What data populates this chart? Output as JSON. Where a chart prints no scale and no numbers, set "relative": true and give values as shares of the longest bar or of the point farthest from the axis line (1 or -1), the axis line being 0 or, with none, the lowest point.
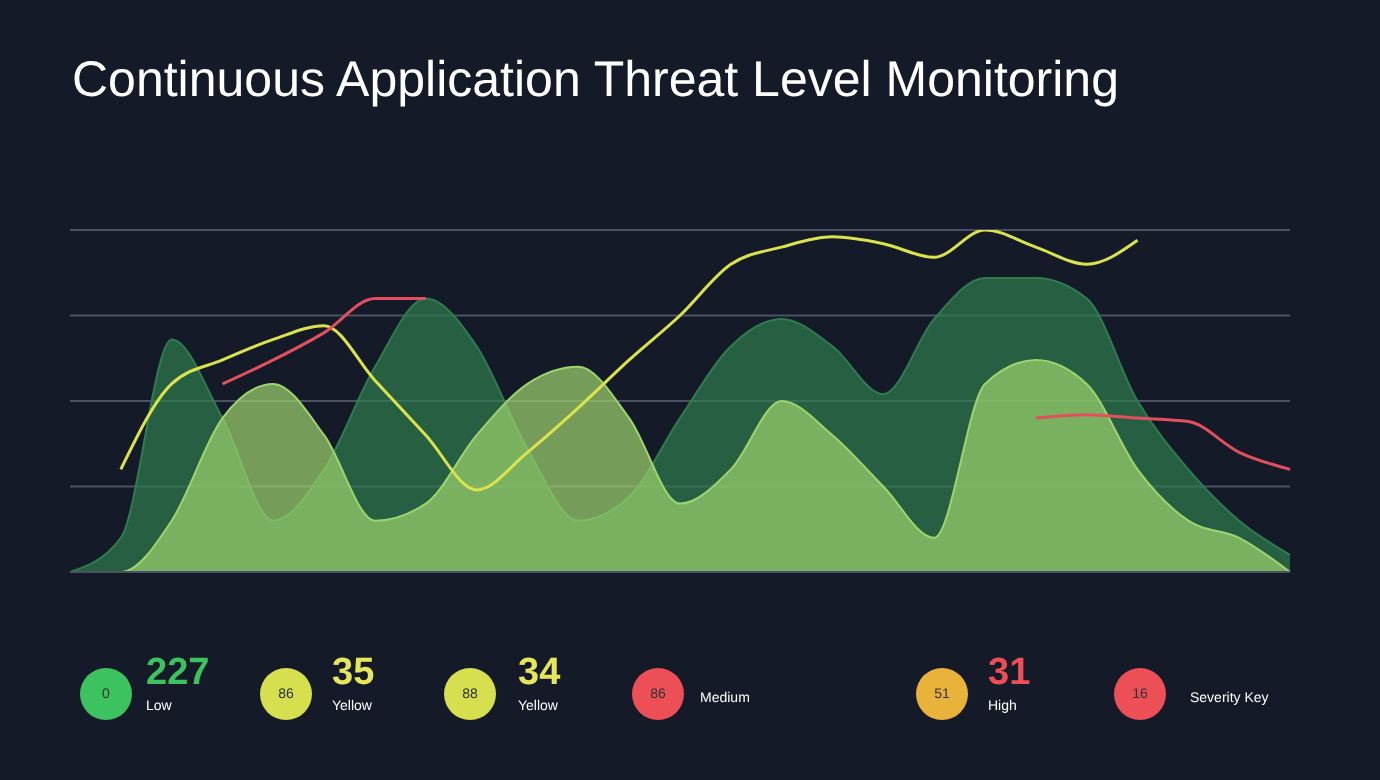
{
  "chart_data": {
    "type": "area",
    "title": "Continuous Application Threat Level Monitoring",
    "relative": true,
    "annotations": [
      "0",
      "227",
      "Low",
      "86",
      "35",
      "Yellow",
      "88",
      "34",
      "Yellow",
      "86",
      "Medium",
      "51",
      "31",
      "High",
      "16",
      "Severity Key"
    ],
    "categories": [
      null,
      null,
      null,
      null,
      null,
      null,
      null,
      null,
      null,
      null,
      null,
      null,
      null,
      null,
      null,
      null,
      null,
      null,
      null,
      null,
      null,
      null,
      null,
      null,
      null
    ],
    "series": [
      {
        "color": "#2f7d4e",
        "values": [
          0,
          0.1,
          0.68,
          0.45,
          0.15,
          0.3,
          0.6,
          0.8,
          0.66,
          0.36,
          0.15,
          0.22,
          0.45,
          0.66,
          0.74,
          0.66,
          0.52,
          0.74,
          0.86,
          0.86,
          0.8,
          0.5,
          0.3,
          0.15,
          0.05
        ]
      },
      {
        "color": "#9ed46e",
        "values": [
          0,
          0,
          0.15,
          0.45,
          0.55,
          0.4,
          0.15,
          0.2,
          0.4,
          0.55,
          0.6,
          0.45,
          0.2,
          0.3,
          0.5,
          0.4,
          0.25,
          0.1,
          0.55,
          0.62,
          0.55,
          0.3,
          0.15,
          0.1,
          0
        ]
      },
      {
        "type": "line",
        "color": "#dce24c",
        "values": [
          null,
          0.3,
          0.55,
          0.62,
          0.68,
          0.72,
          0.56,
          0.4,
          0.24,
          0.35,
          0.48,
          0.62,
          0.75,
          0.9,
          0.95,
          0.98,
          0.96,
          0.92,
          1,
          0.95,
          0.9,
          0.97,
          null,
          null,
          null
        ]
      },
      {
        "type": "line",
        "color": "#e2505e",
        "values": [
          null,
          null,
          null,
          0.55,
          0.62,
          0.7,
          0.8,
          0.8,
          null,
          null,
          null,
          null,
          null,
          null,
          null,
          null,
          null,
          null,
          null,
          0.45,
          0.46,
          0.45,
          0.44,
          0.35,
          0.3
        ]
      }
    ]
  }
}
